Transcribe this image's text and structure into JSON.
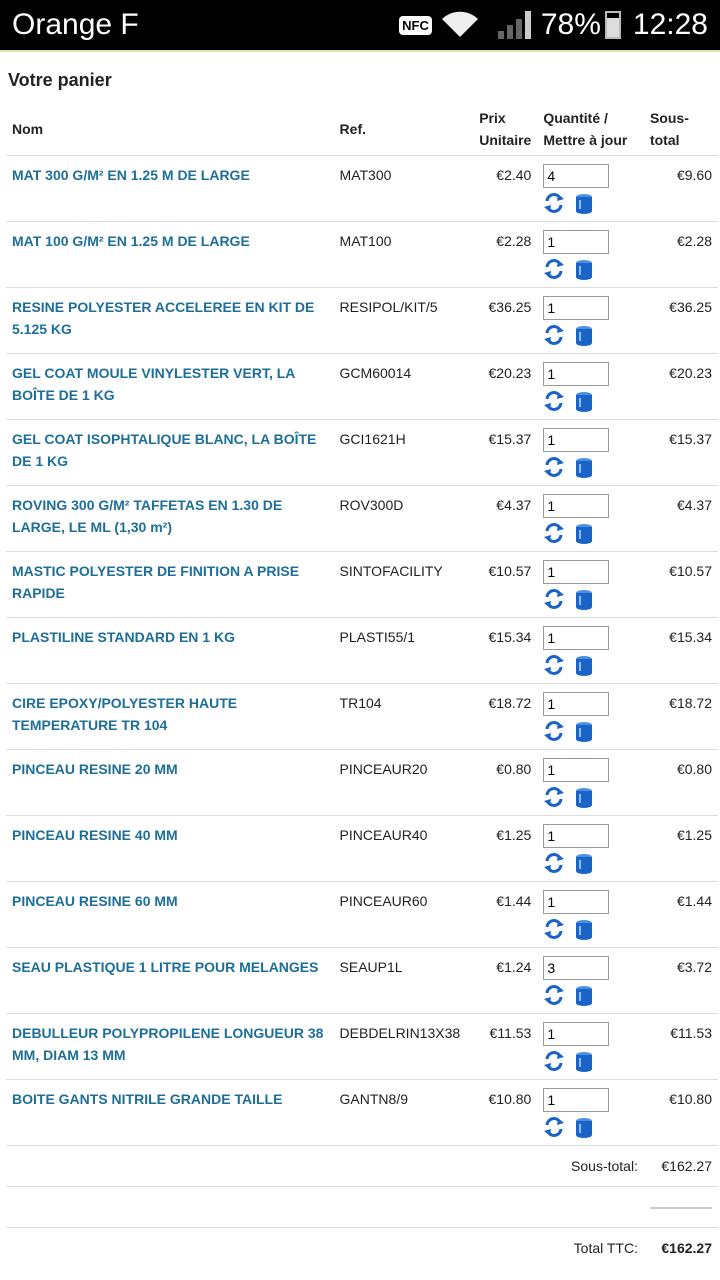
{
  "status": {
    "carrier": "Orange F",
    "nfc": "NFC",
    "battery": "78%",
    "time": "12:28"
  },
  "page": {
    "title": "Votre panier"
  },
  "columns": {
    "name": "Nom",
    "ref": "Ref.",
    "price": "Prix Unitaire",
    "qty": "Quantité / Mettre à jour",
    "subtotal": "Sous-total"
  },
  "items": [
    {
      "name": "MAT 300 G/M² EN 1.25 M DE LARGE",
      "ref": "MAT300",
      "price": "€2.40",
      "qty": "4",
      "subtotal": "€9.60"
    },
    {
      "name": "MAT 100 G/M² EN 1.25 M DE LARGE",
      "ref": "MAT100",
      "price": "€2.28",
      "qty": "1",
      "subtotal": "€2.28"
    },
    {
      "name": "RESINE POLYESTER ACCELEREE EN KIT DE 5.125 KG",
      "ref": "RESIPOL/KIT/5",
      "price": "€36.25",
      "qty": "1",
      "subtotal": "€36.25"
    },
    {
      "name": "GEL COAT MOULE VINYLESTER VERT, LA BOÎTE DE 1 KG",
      "ref": "GCM60014",
      "price": "€20.23",
      "qty": "1",
      "subtotal": "€20.23"
    },
    {
      "name": "GEL COAT ISOPHTALIQUE BLANC, LA BOÎTE DE 1 KG",
      "ref": "GCI1621H",
      "price": "€15.37",
      "qty": "1",
      "subtotal": "€15.37"
    },
    {
      "name": "ROVING 300 G/M² TAFFETAS EN 1.30 DE LARGE, LE ML (1,30 m²)",
      "ref": "ROV300D",
      "price": "€4.37",
      "qty": "1",
      "subtotal": "€4.37"
    },
    {
      "name": "MASTIC POLYESTER DE FINITION A PRISE RAPIDE",
      "ref": "SINTOFACILITY",
      "price": "€10.57",
      "qty": "1",
      "subtotal": "€10.57"
    },
    {
      "name": "PLASTILINE STANDARD EN 1 KG",
      "ref": "PLASTI55/1",
      "price": "€15.34",
      "qty": "1",
      "subtotal": "€15.34"
    },
    {
      "name": "CIRE EPOXY/POLYESTER HAUTE TEMPERATURE TR 104",
      "ref": "TR104",
      "price": "€18.72",
      "qty": "1",
      "subtotal": "€18.72"
    },
    {
      "name": "PINCEAU RESINE 20 MM",
      "ref": "PINCEAUR20",
      "price": "€0.80",
      "qty": "1",
      "subtotal": "€0.80"
    },
    {
      "name": "PINCEAU RESINE 40 MM",
      "ref": "PINCEAUR40",
      "price": "€1.25",
      "qty": "1",
      "subtotal": "€1.25"
    },
    {
      "name": "PINCEAU RESINE 60 MM",
      "ref": "PINCEAUR60",
      "price": "€1.44",
      "qty": "1",
      "subtotal": "€1.44"
    },
    {
      "name": "SEAU PLASTIQUE 1 LITRE POUR MELANGES",
      "ref": "SEAUP1L",
      "price": "€1.24",
      "qty": "3",
      "subtotal": "€3.72"
    },
    {
      "name": "DEBULLEUR POLYPROPILENE LONGUEUR 38 MM, DIAM 13 MM",
      "ref": "DEBDELRIN13X38",
      "price": "€11.53",
      "qty": "1",
      "subtotal": "€11.53"
    },
    {
      "name": "BOITE GANTS NITRILE GRANDE TAILLE",
      "ref": "GANTN8/9",
      "price": "€10.80",
      "qty": "1",
      "subtotal": "€10.80"
    }
  ],
  "summary": {
    "subtotal_label": "Sous-total:",
    "subtotal_value": "€162.27",
    "total_label": "Total TTC:",
    "total_value": "€162.27"
  },
  "icons": {
    "refresh": "refresh-icon",
    "delete": "trash-icon"
  },
  "colors": {
    "link": "#1d6f9a",
    "icon": "#1a63c8"
  }
}
